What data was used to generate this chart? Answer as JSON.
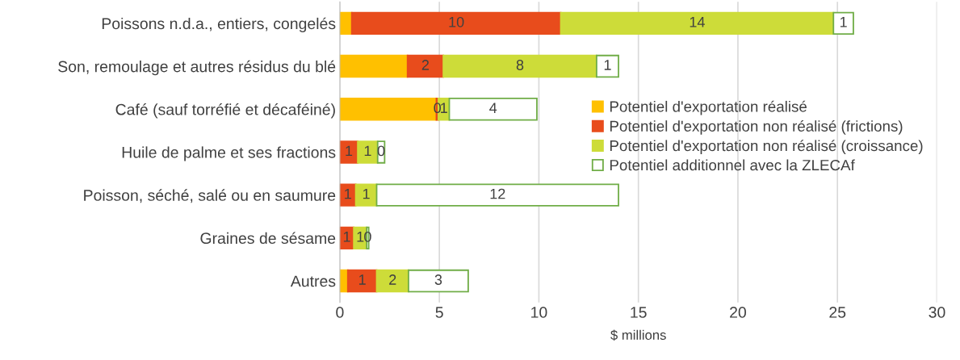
{
  "chart_data": {
    "type": "bar",
    "orientation": "horizontal",
    "stacked": true,
    "xlabel": "$ millions",
    "categories": [
      "Poissons n.d.a., entiers, congelés",
      "Son, remoulage et autres résidus du blé",
      "Café (sauf torréfié et décaféiné)",
      "Huile de palme et ses fractions",
      "Poisson, séché, salé ou en saumure",
      "Graines de sésame",
      "Autres"
    ],
    "series": [
      {
        "name": "Potentiel d'exportation réalisé",
        "color": "#ffc000",
        "values": [
          0.6,
          3.4,
          4.85,
          0,
          0,
          0,
          0.4
        ]
      },
      {
        "name": "Potentiel d'exportation non réalisé (frictions)",
        "color": "#e84c1c",
        "values": [
          10.5,
          1.8,
          0.1,
          0.9,
          0.8,
          0.7,
          1.45
        ],
        "value_labels": [
          "10",
          "2",
          "0",
          "1",
          "1",
          "1",
          "1"
        ]
      },
      {
        "name": "Potentiel d'exportation non réalisé (croissance)",
        "color": "#cddc39",
        "values": [
          13.7,
          7.7,
          0.55,
          1.0,
          1.05,
          0.65,
          1.6
        ],
        "value_labels": [
          "14",
          "8",
          "1",
          "1",
          "1",
          "1",
          "2"
        ]
      },
      {
        "name": "Potentiel additionnel avec la ZLECAf",
        "color": "#ffffff",
        "values": [
          1.0,
          1.1,
          4.4,
          0.35,
          12.15,
          0.1,
          3.0
        ],
        "value_labels": [
          "1",
          "1",
          "4",
          "0",
          "12",
          "0",
          "3"
        ]
      }
    ],
    "xlim": [
      0,
      30
    ],
    "xticks": [
      0,
      5,
      10,
      15,
      20,
      25,
      30
    ],
    "grid": "x",
    "legend": "right"
  }
}
